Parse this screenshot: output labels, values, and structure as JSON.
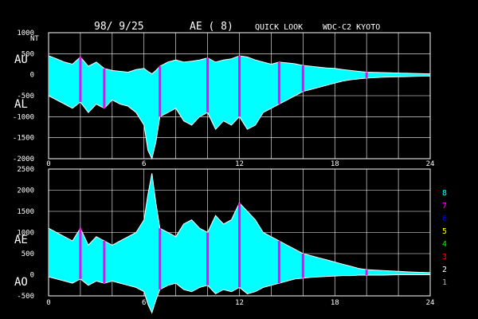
{
  "header": {
    "date": "98/ 9/25",
    "index": "AE ( 8)",
    "mode": "QUICK LOOK",
    "source": "WDC-C2 KYOTO"
  },
  "chart_data": [
    {
      "type": "area",
      "panel": "top",
      "unit_label": "NT",
      "series_labels": [
        "AU",
        "AL"
      ],
      "x_ticks": [
        "0",
        "6",
        "12",
        "18",
        "24"
      ],
      "y_tick_labels": [
        "1000",
        "500",
        "0",
        "-500",
        "-1000",
        "-1500",
        "-2000"
      ],
      "xlim": [
        0,
        24
      ],
      "ylim": [
        -2000,
        1000
      ],
      "grid": true,
      "colors": {
        "envelope": "#ffffff",
        "fill": "#00ffff",
        "highlight": "#ff00ff"
      },
      "x": [
        0,
        0.5,
        1,
        1.5,
        2,
        2.5,
        3,
        3.5,
        4,
        4.5,
        5,
        5.5,
        6,
        6.25,
        6.5,
        6.75,
        7,
        7.5,
        8,
        8.5,
        9,
        9.5,
        10,
        10.5,
        11,
        11.5,
        12,
        12.5,
        13,
        13.5,
        14,
        14.5,
        15,
        15.5,
        16,
        16.5,
        17,
        17.5,
        18,
        18.5,
        19,
        19.5,
        20,
        21,
        22,
        23,
        24
      ],
      "series": [
        {
          "name": "AU",
          "values": [
            450,
            380,
            300,
            250,
            420,
            200,
            300,
            150,
            100,
            80,
            60,
            120,
            150,
            80,
            20,
            100,
            200,
            300,
            350,
            300,
            320,
            350,
            400,
            300,
            350,
            380,
            450,
            420,
            350,
            300,
            250,
            300,
            280,
            260,
            220,
            200,
            180,
            160,
            150,
            120,
            100,
            80,
            60,
            50,
            40,
            30,
            20
          ]
        },
        {
          "name": "AL",
          "values": [
            -500,
            -600,
            -700,
            -800,
            -650,
            -900,
            -700,
            -800,
            -600,
            -700,
            -750,
            -900,
            -1200,
            -1800,
            -2000,
            -1600,
            -1000,
            -900,
            -800,
            -1100,
            -1200,
            -1000,
            -900,
            -1300,
            -1100,
            -1200,
            -1000,
            -1300,
            -1200,
            -900,
            -800,
            -700,
            -600,
            -500,
            -400,
            -350,
            -300,
            -250,
            -200,
            -150,
            -120,
            -100,
            -80,
            -60,
            -50,
            -40,
            -30
          ]
        }
      ],
      "highlight_hours": [
        2,
        3.5,
        7,
        10,
        12,
        14.5,
        16,
        20
      ]
    },
    {
      "type": "area",
      "panel": "bottom",
      "series_labels": [
        "AE",
        "AO"
      ],
      "x_ticks": [
        "0",
        "6",
        "12",
        "18",
        "24"
      ],
      "y_tick_labels": [
        "2500",
        "2000",
        "1500",
        "1000",
        "500",
        "0",
        "-500"
      ],
      "xlim": [
        0,
        24
      ],
      "ylim": [
        -500,
        2500
      ],
      "grid": true,
      "colors": {
        "envelope": "#ffffff",
        "fill": "#00ffff",
        "highlight": "#ff00ff"
      },
      "x": [
        0,
        0.5,
        1,
        1.5,
        2,
        2.5,
        3,
        3.5,
        4,
        4.5,
        5,
        5.5,
        6,
        6.25,
        6.5,
        6.75,
        7,
        7.5,
        8,
        8.5,
        9,
        9.5,
        10,
        10.5,
        11,
        11.5,
        12,
        12.5,
        13,
        13.5,
        14,
        14.5,
        15,
        15.5,
        16,
        16.5,
        17,
        17.5,
        18,
        18.5,
        19,
        19.5,
        20,
        21,
        22,
        23,
        24
      ],
      "series": [
        {
          "name": "AE",
          "values": [
            1100,
            1000,
            900,
            800,
            1100,
            700,
            900,
            800,
            700,
            800,
            900,
            1000,
            1300,
            1900,
            2400,
            1700,
            1100,
            1000,
            900,
            1200,
            1300,
            1100,
            1000,
            1400,
            1200,
            1300,
            1700,
            1500,
            1300,
            1000,
            900,
            800,
            700,
            600,
            500,
            450,
            400,
            350,
            300,
            250,
            200,
            150,
            120,
            100,
            80,
            60,
            50
          ]
        },
        {
          "name": "AO",
          "values": [
            -50,
            -100,
            -150,
            -200,
            -100,
            -250,
            -150,
            -200,
            -150,
            -200,
            -250,
            -300,
            -400,
            -700,
            -900,
            -600,
            -350,
            -250,
            -200,
            -350,
            -400,
            -300,
            -250,
            -450,
            -350,
            -400,
            -300,
            -450,
            -400,
            -300,
            -250,
            -200,
            -150,
            -100,
            -80,
            -60,
            -50,
            -40,
            -30,
            -20,
            -20,
            -10,
            -10,
            -10,
            0,
            0,
            0
          ]
        }
      ],
      "highlight_hours": [
        2,
        3.5,
        7,
        10,
        12,
        14.5,
        16,
        20
      ]
    }
  ],
  "legend": {
    "entries": [
      {
        "label": "8",
        "color": "#00ffff"
      },
      {
        "label": "7",
        "color": "#ff00ff"
      },
      {
        "label": "6",
        "color": "#0000ff"
      },
      {
        "label": "5",
        "color": "#ffff00"
      },
      {
        "label": "4",
        "color": "#00ff00"
      },
      {
        "label": "3",
        "color": "#ff0000"
      },
      {
        "label": "2",
        "color": "#ffffff"
      },
      {
        "label": "1",
        "color": "#aaaaaa"
      }
    ]
  }
}
